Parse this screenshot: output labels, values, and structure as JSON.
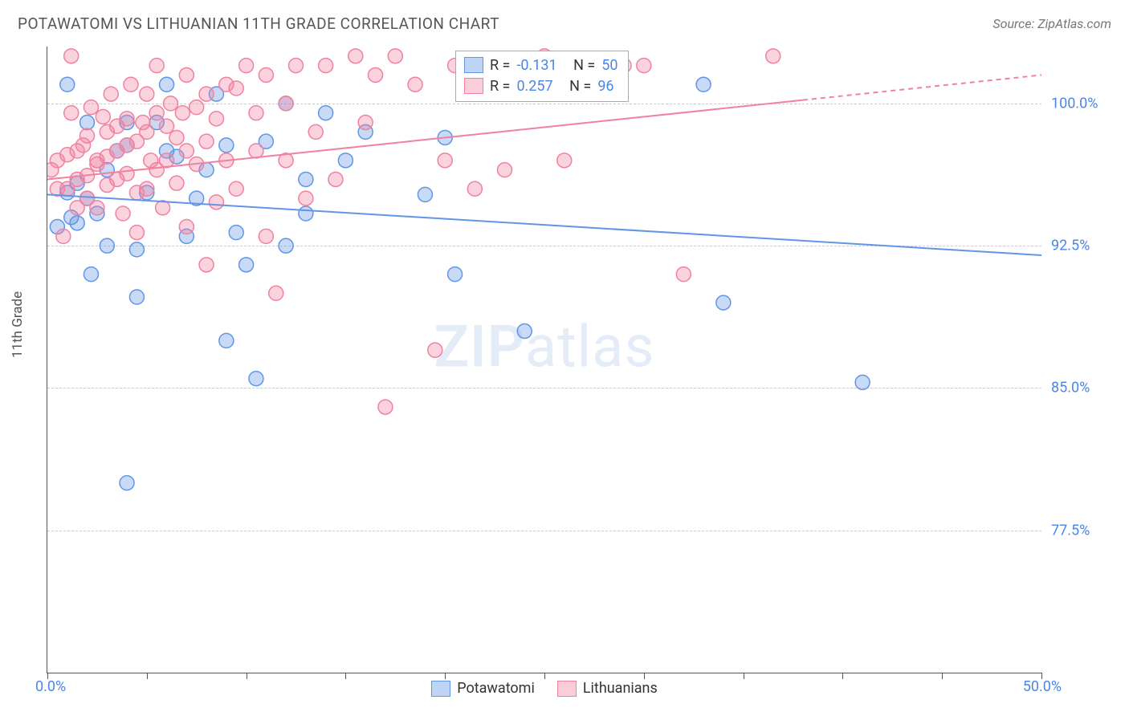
{
  "title": "POTAWATOMI VS LITHUANIAN 11TH GRADE CORRELATION CHART",
  "source": "Source: ZipAtlas.com",
  "ylabel": "11th Grade",
  "watermark": {
    "bold": "ZIP",
    "rest": "atlas"
  },
  "chart": {
    "type": "scatter",
    "xlim": [
      0,
      50
    ],
    "ylim": [
      70,
      103
    ],
    "x_ticks": [
      0,
      5,
      10,
      15,
      20,
      25,
      30,
      35,
      40,
      45,
      50
    ],
    "y_gridlines": [
      77.5,
      85.0,
      92.5,
      100.0
    ],
    "y_tick_labels": [
      "77.5%",
      "85.0%",
      "92.5%",
      "100.0%"
    ],
    "x_min_label": "0.0%",
    "x_max_label": "50.0%",
    "background_color": "#ffffff",
    "grid_color": "#cccccc",
    "axis_color": "#555555",
    "tick_label_color": "#4a86e8",
    "marker_radius": 9,
    "marker_fill_opacity": 0.35,
    "series": [
      {
        "name": "Potawatomi",
        "color": "#6096e6",
        "R": "-0.131",
        "N": "50",
        "trend": {
          "y_at_x0": 95.2,
          "y_at_x50": 92.0,
          "solid_until_x": 50,
          "width": 2
        },
        "points": [
          [
            0.5,
            93.5
          ],
          [
            1.0,
            95.3
          ],
          [
            1.0,
            101.0
          ],
          [
            1.2,
            94.0
          ],
          [
            1.5,
            95.8
          ],
          [
            1.5,
            93.7
          ],
          [
            2.0,
            99.0
          ],
          [
            2.0,
            95.0
          ],
          [
            2.2,
            91.0
          ],
          [
            2.5,
            94.2
          ],
          [
            3.0,
            96.5
          ],
          [
            3.0,
            92.5
          ],
          [
            3.5,
            97.5
          ],
          [
            4.0,
            80.0
          ],
          [
            4.0,
            99.0
          ],
          [
            4.0,
            97.8
          ],
          [
            4.5,
            92.3
          ],
          [
            4.5,
            89.8
          ],
          [
            5.0,
            95.3
          ],
          [
            5.5,
            99.0
          ],
          [
            6.0,
            101.0
          ],
          [
            6.0,
            97.5
          ],
          [
            6.5,
            97.2
          ],
          [
            7.0,
            93.0
          ],
          [
            7.5,
            95.0
          ],
          [
            8.0,
            96.5
          ],
          [
            8.5,
            100.5
          ],
          [
            9.0,
            87.5
          ],
          [
            9.0,
            97.8
          ],
          [
            9.5,
            93.2
          ],
          [
            10.0,
            91.5
          ],
          [
            10.5,
            85.5
          ],
          [
            11.0,
            98.0
          ],
          [
            12.0,
            100.0
          ],
          [
            12.0,
            92.5
          ],
          [
            13.0,
            96.0
          ],
          [
            13.0,
            94.2
          ],
          [
            14.0,
            99.5
          ],
          [
            15.0,
            97.0
          ],
          [
            16.0,
            98.5
          ],
          [
            19.0,
            95.2
          ],
          [
            20.0,
            98.2
          ],
          [
            20.5,
            91.0
          ],
          [
            24.0,
            88.0
          ],
          [
            25.0,
            101.0
          ],
          [
            33.0,
            101.0
          ],
          [
            34.0,
            89.5
          ],
          [
            41.0,
            85.3
          ]
        ]
      },
      {
        "name": "Lithuanians",
        "color": "#f082a0",
        "R": "0.257",
        "N": "96",
        "trend": {
          "y_at_x0": 96.0,
          "y_at_x50": 101.5,
          "solid_until_x": 38,
          "width": 2
        },
        "points": [
          [
            0.2,
            96.5
          ],
          [
            0.5,
            97.0
          ],
          [
            0.5,
            95.5
          ],
          [
            0.8,
            93.0
          ],
          [
            1.0,
            97.3
          ],
          [
            1.0,
            95.5
          ],
          [
            1.2,
            102.5
          ],
          [
            1.2,
            99.5
          ],
          [
            1.5,
            97.5
          ],
          [
            1.5,
            96.0
          ],
          [
            1.5,
            94.5
          ],
          [
            1.8,
            97.8
          ],
          [
            2.0,
            98.3
          ],
          [
            2.0,
            96.2
          ],
          [
            2.0,
            95.0
          ],
          [
            2.2,
            99.8
          ],
          [
            2.5,
            97.0
          ],
          [
            2.5,
            96.8
          ],
          [
            2.5,
            94.5
          ],
          [
            2.8,
            99.3
          ],
          [
            3.0,
            98.5
          ],
          [
            3.0,
            97.2
          ],
          [
            3.0,
            95.7
          ],
          [
            3.2,
            100.5
          ],
          [
            3.5,
            98.8
          ],
          [
            3.5,
            97.5
          ],
          [
            3.5,
            96.0
          ],
          [
            3.8,
            94.2
          ],
          [
            4.0,
            99.2
          ],
          [
            4.0,
            97.8
          ],
          [
            4.0,
            96.3
          ],
          [
            4.2,
            101.0
          ],
          [
            4.5,
            98.0
          ],
          [
            4.5,
            95.3
          ],
          [
            4.5,
            93.2
          ],
          [
            4.8,
            99.0
          ],
          [
            5.0,
            100.5
          ],
          [
            5.0,
            98.5
          ],
          [
            5.0,
            95.5
          ],
          [
            5.2,
            97.0
          ],
          [
            5.5,
            102.0
          ],
          [
            5.5,
            99.5
          ],
          [
            5.5,
            96.5
          ],
          [
            5.8,
            94.5
          ],
          [
            6.0,
            98.8
          ],
          [
            6.0,
            97.0
          ],
          [
            6.2,
            100.0
          ],
          [
            6.5,
            98.2
          ],
          [
            6.5,
            95.8
          ],
          [
            6.8,
            99.5
          ],
          [
            7.0,
            101.5
          ],
          [
            7.0,
            97.5
          ],
          [
            7.0,
            93.5
          ],
          [
            7.5,
            99.8
          ],
          [
            7.5,
            96.8
          ],
          [
            8.0,
            91.5
          ],
          [
            8.0,
            100.5
          ],
          [
            8.0,
            98.0
          ],
          [
            8.5,
            94.8
          ],
          [
            8.5,
            99.2
          ],
          [
            9.0,
            97.0
          ],
          [
            9.0,
            101.0
          ],
          [
            9.5,
            100.8
          ],
          [
            9.5,
            95.5
          ],
          [
            10.0,
            102.0
          ],
          [
            10.5,
            97.5
          ],
          [
            10.5,
            99.5
          ],
          [
            11.0,
            93.0
          ],
          [
            11.0,
            101.5
          ],
          [
            11.5,
            90.0
          ],
          [
            12.0,
            97.0
          ],
          [
            12.0,
            100.0
          ],
          [
            12.5,
            102.0
          ],
          [
            13.0,
            95.0
          ],
          [
            13.5,
            98.5
          ],
          [
            14.0,
            102.0
          ],
          [
            14.5,
            96.0
          ],
          [
            15.5,
            102.5
          ],
          [
            16.0,
            99.0
          ],
          [
            16.5,
            101.5
          ],
          [
            17.0,
            84.0
          ],
          [
            17.5,
            102.5
          ],
          [
            18.5,
            101.0
          ],
          [
            19.5,
            87.0
          ],
          [
            20.0,
            97.0
          ],
          [
            20.5,
            102.0
          ],
          [
            21.5,
            95.5
          ],
          [
            23.0,
            96.5
          ],
          [
            25.0,
            102.5
          ],
          [
            26.0,
            97.0
          ],
          [
            29.0,
            102.0
          ],
          [
            30.0,
            102.0
          ],
          [
            32.0,
            91.0
          ],
          [
            36.5,
            102.5
          ]
        ]
      }
    ],
    "legend_position": "inside-top",
    "legend_labels": {
      "R_prefix": "R = ",
      "N_prefix": "N = "
    }
  },
  "bottom_legend": [
    {
      "label": "Potawatomi",
      "color": "#6096e6"
    },
    {
      "label": "Lithuanians",
      "color": "#f082a0"
    }
  ]
}
